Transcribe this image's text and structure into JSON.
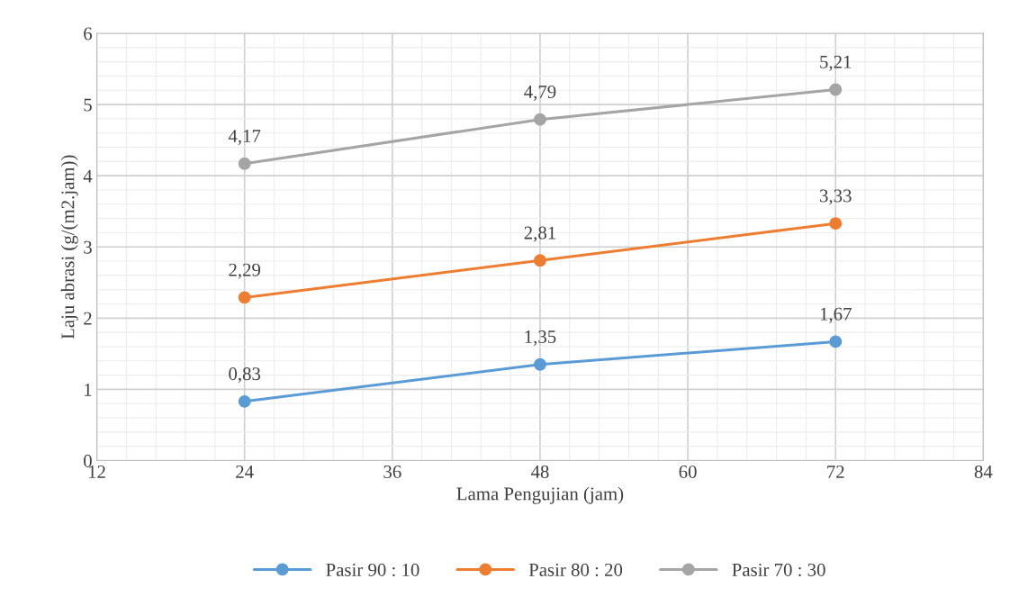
{
  "chart_data": {
    "type": "line",
    "xlabel": "Lama Pengujian (jam)",
    "ylabel": "Laju abrasi (g/(m2.jam))",
    "x": [
      24,
      48,
      72
    ],
    "series": [
      {
        "name": "Pasir 90 : 10",
        "color": "#5b9bd5",
        "values": [
          0.83,
          1.35,
          1.67
        ],
        "value_labels": [
          "0,83",
          "1,35",
          "1,67"
        ]
      },
      {
        "name": "Pasir 80 : 20",
        "color": "#ed7d31",
        "values": [
          2.29,
          2.81,
          3.33
        ],
        "value_labels": [
          "2,29",
          "2,81",
          "3,33"
        ]
      },
      {
        "name": "Pasir 70 : 30",
        "color": "#a5a5a5",
        "values": [
          4.17,
          4.79,
          5.21
        ],
        "value_labels": [
          "4,17",
          "4,79",
          "5,21"
        ]
      }
    ],
    "xlim": [
      12,
      84
    ],
    "xticks": [
      12,
      24,
      36,
      48,
      60,
      72,
      84
    ],
    "ylim": [
      0,
      6
    ],
    "yticks": [
      0,
      1,
      2,
      3,
      4,
      5,
      6
    ],
    "grid": true,
    "legend": "bottom",
    "marker": "circle",
    "line_style": "solid"
  }
}
